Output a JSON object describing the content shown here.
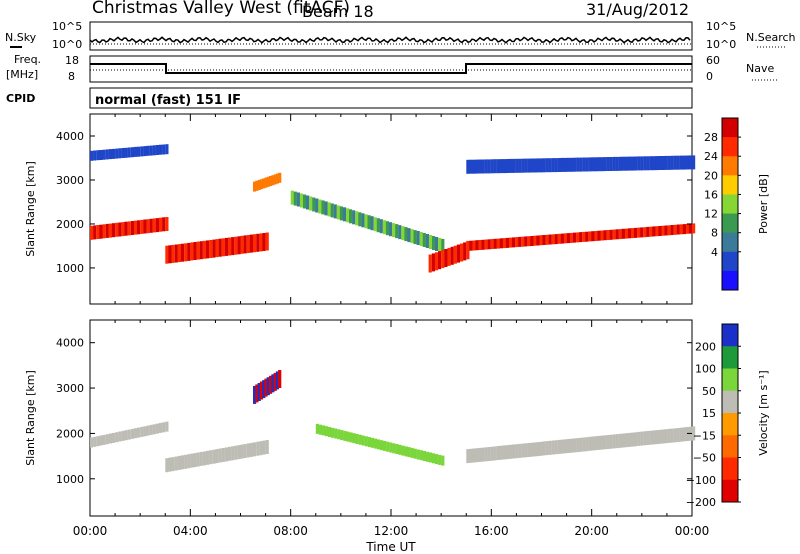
{
  "header": {
    "title": "Christmas Valley West (fitACF)",
    "beam": "Beam 18",
    "date": "31/Aug/2012"
  },
  "strip_labels": {
    "nsky": "N.Sky",
    "nsky_ticks": [
      "10^5",
      "10^0"
    ],
    "nsearch": "N.Search",
    "nsearch_ticks": [
      "10^5",
      "10^0"
    ],
    "freq": "Freq.",
    "freq_unit": "[MHz]",
    "freq_ticks": [
      "18",
      "8"
    ],
    "nave": "Nave",
    "nave_ticks": [
      "60",
      "0"
    ],
    "cpid": "CPID",
    "cpid_text": "normal (fast) 151 IF"
  },
  "chart_data": [
    {
      "type": "heatmap",
      "name": "power-panel",
      "ylabel": "Slant Range [km]",
      "xlabel": "Time UT",
      "xlim": [
        0,
        24
      ],
      "ylim": [
        180,
        4500
      ],
      "x_ticks": [
        "00:00",
        "04:00",
        "08:00",
        "12:00",
        "16:00",
        "20:00",
        "00:00"
      ],
      "y_ticks": [
        1000,
        2000,
        3000,
        4000
      ],
      "colorbar": {
        "label": "Power [dB]",
        "ticks": [
          "28",
          "24",
          "20",
          "16",
          "12",
          "8",
          "4"
        ],
        "colors": [
          "#d20000",
          "#ff2a00",
          "#ff7a00",
          "#ffcc00",
          "#86d636",
          "#3a9a52",
          "#3c7a9a",
          "#1f45c8",
          "#1a10ff"
        ]
      },
      "features": [
        {
          "label": "far band",
          "x": [
            0,
            3
          ],
          "y": [
            3550,
            3700
          ]
        },
        {
          "label": "main echo",
          "x": [
            0,
            3
          ],
          "y": [
            1800,
            2000
          ]
        },
        {
          "label": "main echo",
          "x": [
            3,
            7
          ],
          "y": [
            1300,
            1600
          ]
        },
        {
          "label": "patch",
          "x": [
            6.5,
            7.5
          ],
          "y": [
            2850,
            3050
          ]
        },
        {
          "label": "arc",
          "x": [
            8,
            14
          ],
          "y": [
            2600,
            1500
          ]
        },
        {
          "label": "main echo",
          "x": [
            13.5,
            15
          ],
          "y": [
            1100,
            1400
          ]
        },
        {
          "label": "main echo",
          "x": [
            15,
            24
          ],
          "y": [
            1500,
            1900
          ]
        },
        {
          "label": "far band",
          "x": [
            15,
            24
          ],
          "y": [
            3300,
            3400
          ]
        }
      ]
    },
    {
      "type": "heatmap",
      "name": "velocity-panel",
      "ylabel": "Slant Range [km]",
      "xlabel": "Time UT",
      "xlim": [
        0,
        24
      ],
      "ylim": [
        180,
        4500
      ],
      "x_ticks": [
        "00:00",
        "04:00",
        "08:00",
        "12:00",
        "16:00",
        "20:00",
        "00:00"
      ],
      "y_ticks": [
        1000,
        2000,
        3000,
        4000
      ],
      "colorbar": {
        "label": "Velocity [m s⁻¹]",
        "ticks": [
          "200",
          "100",
          "50",
          "15",
          "−15",
          "−50",
          "−100",
          "−200"
        ],
        "colors": [
          "#1a30c8",
          "#1f9a3a",
          "#7ad63a",
          "#bdbdb5",
          "#ff9a00",
          "#ff6a00",
          "#ff2a00",
          "#e00000"
        ]
      },
      "features": [
        {
          "label": "ground scatter",
          "x": [
            0,
            3
          ],
          "y": [
            1800,
            2150
          ]
        },
        {
          "label": "ground scatter",
          "x": [
            3,
            7
          ],
          "y": [
            1300,
            1700
          ]
        },
        {
          "label": "red/blue patch",
          "x": [
            6.5,
            7.5
          ],
          "y": [
            2850,
            3200
          ]
        },
        {
          "label": "green arc",
          "x": [
            9,
            14
          ],
          "y": [
            2100,
            1400
          ]
        },
        {
          "label": "ground scatter",
          "x": [
            15,
            24
          ],
          "y": [
            1500,
            2000
          ]
        }
      ]
    }
  ]
}
